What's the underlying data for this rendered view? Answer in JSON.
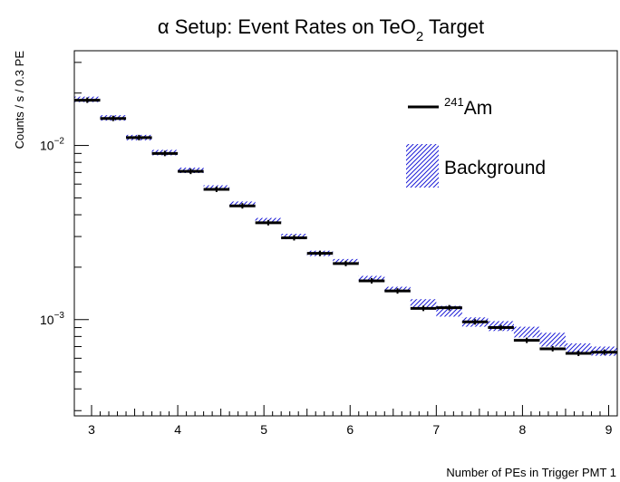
{
  "chart_data": {
    "type": "step-histogram",
    "title": "α Setup: Event Rates on TeO₂ Target",
    "title_parts": {
      "pre": "α Setup: Event Rates on TeO",
      "sub": "2",
      "post": " Target"
    },
    "xlabel": "Number of PEs in Trigger PMT 1",
    "ylabel": "Counts / s / 0.3 PE",
    "xlim": [
      2.8,
      9.1
    ],
    "ylim": [
      0.00028,
      0.035
    ],
    "yscale": "log",
    "bin_width": 0.3,
    "xticks": [
      3,
      4,
      5,
      6,
      7,
      8,
      9
    ],
    "xtick_labels": [
      "3",
      "4",
      "5",
      "6",
      "7",
      "8",
      "9"
    ],
    "yticks": [
      {
        "value": 0.01,
        "base": "10",
        "exp": "−2"
      },
      {
        "value": 0.001,
        "base": "10",
        "exp": "−3"
      }
    ],
    "grid": false,
    "legend_position": "top-right",
    "series": [
      {
        "name": "²⁴¹Am",
        "label_sup": "241",
        "label_main": "Am",
        "style": "black horizontal segments with small error bars",
        "color": "#000000",
        "x_centers": [
          2.95,
          3.25,
          3.55,
          3.85,
          4.15,
          4.45,
          4.75,
          5.05,
          5.35,
          5.65,
          5.95,
          6.25,
          6.55,
          6.85,
          7.15,
          7.45,
          7.75,
          8.05,
          8.35,
          8.65,
          8.95
        ],
        "values": [
          0.0182,
          0.0143,
          0.0111,
          0.009,
          0.0071,
          0.0056,
          0.0045,
          0.0036,
          0.00295,
          0.0024,
          0.0021,
          0.00167,
          0.00146,
          0.00116,
          0.00117,
          0.00097,
          0.0009,
          0.00076,
          0.00068,
          0.00064,
          0.00065
        ],
        "errors": [
          0.0002,
          0.00015,
          0.00013,
          0.0001,
          8e-05,
          6e-05,
          5e-05,
          4e-05,
          3e-05,
          2.5e-05,
          2e-05,
          2e-05,
          2e-05,
          2e-05,
          2e-05,
          2e-05,
          2e-05,
          2e-05,
          2e-05,
          2e-05,
          2e-05
        ]
      },
      {
        "name": "Background",
        "style": "blue hatched band",
        "color": "#1c1cd8",
        "x_centers": [
          2.95,
          3.25,
          3.55,
          3.85,
          4.15,
          4.45,
          4.75,
          5.05,
          5.35,
          5.65,
          5.95,
          6.25,
          6.55,
          6.85,
          7.15,
          7.45,
          7.75,
          8.05,
          8.35,
          8.65,
          8.95
        ],
        "values": [
          0.0184,
          0.0144,
          0.0111,
          0.0091,
          0.0072,
          0.0057,
          0.0046,
          0.0037,
          0.003,
          0.0024,
          0.00215,
          0.00172,
          0.00149,
          0.00124,
          0.00112,
          0.00097,
          0.00092,
          0.00085,
          0.00077,
          0.00068,
          0.00066
        ],
        "band_halfwidth": [
          0.0003,
          0.00025,
          0.0002,
          0.00015,
          0.00012,
          0.0001,
          8e-05,
          7e-05,
          6e-05,
          5e-05,
          5e-05,
          5e-05,
          5e-05,
          7e-05,
          8e-05,
          6e-05,
          6e-05,
          6e-05,
          7e-05,
          5e-05,
          4e-05
        ]
      }
    ]
  }
}
